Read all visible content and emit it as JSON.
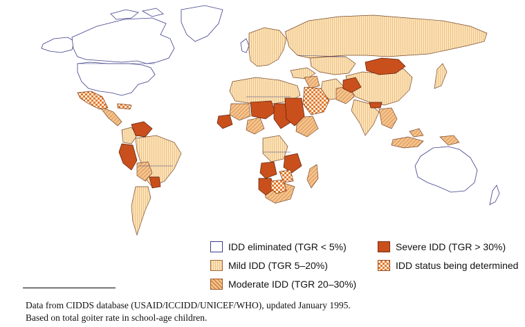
{
  "legend": {
    "items": [
      {
        "label": "IDD eliminated (TGR < 5%)",
        "pattern": "blank",
        "color": "#ffffff"
      },
      {
        "label": "Mild IDD (TGR 5–20%)",
        "pattern": "fine vertical lines",
        "color": "#fbe3b5"
      },
      {
        "label": "Moderate IDD (TGR 20–30%)",
        "pattern": "diagonal hatch",
        "color": "#f4c48c"
      },
      {
        "label": "Severe IDD (TGR > 30%)",
        "pattern": "solid",
        "color": "#c9501c"
      },
      {
        "label": "IDD status being determined",
        "pattern": "checkered",
        "color": "#e07834"
      }
    ]
  },
  "notes": {
    "line1": "Data from CIDDS database (USAID/ICCIDD/UNICEF/WHO), updated January 1995.",
    "line2": "Based on total goiter rate in school-age children."
  },
  "colors": {
    "ocean": "#ffffff",
    "outline": "#3c3c8a",
    "mild": "#fbe3b5",
    "moderate": "#f4c48c",
    "severe": "#c9501c",
    "determined": "#e07834"
  },
  "map": {
    "title": "",
    "regions": [
      {
        "name": "Canada",
        "status": "eliminated"
      },
      {
        "name": "United States",
        "status": "eliminated"
      },
      {
        "name": "Greenland",
        "status": "eliminated"
      },
      {
        "name": "Alaska",
        "status": "eliminated"
      },
      {
        "name": "Europe",
        "status": "mild"
      },
      {
        "name": "Russia",
        "status": "mild"
      },
      {
        "name": "Mongolia",
        "status": "severe"
      },
      {
        "name": "China",
        "status": "mild"
      },
      {
        "name": "India",
        "status": "mild"
      },
      {
        "name": "Mexico",
        "status": "determined"
      },
      {
        "name": "Central America",
        "status": "moderate"
      },
      {
        "name": "Venezuela",
        "status": "severe"
      },
      {
        "name": "Colombia",
        "status": "mild"
      },
      {
        "name": "Brazil",
        "status": "mild"
      },
      {
        "name": "Peru",
        "status": "severe"
      },
      {
        "name": "Bolivia",
        "status": "moderate"
      },
      {
        "name": "Paraguay",
        "status": "severe"
      },
      {
        "name": "Argentina",
        "status": "mild"
      },
      {
        "name": "Chile",
        "status": "mild"
      },
      {
        "name": "North Africa",
        "status": "mild"
      },
      {
        "name": "Mali",
        "status": "moderate"
      },
      {
        "name": "Niger",
        "status": "severe"
      },
      {
        "name": "Nigeria",
        "status": "moderate"
      },
      {
        "name": "Chad",
        "status": "severe"
      },
      {
        "name": "Sudan",
        "status": "severe"
      },
      {
        "name": "Ethiopia",
        "status": "moderate"
      },
      {
        "name": "Zaire",
        "status": "mild"
      },
      {
        "name": "Tanzania",
        "status": "severe"
      },
      {
        "name": "Angola",
        "status": "severe"
      },
      {
        "name": "Namibia",
        "status": "severe"
      },
      {
        "name": "Botswana",
        "status": "determined"
      },
      {
        "name": "South Africa",
        "status": "moderate"
      },
      {
        "name": "Madagascar",
        "status": "moderate"
      },
      {
        "name": "Saudi Arabia",
        "status": "determined"
      },
      {
        "name": "Iran",
        "status": "mild"
      },
      {
        "name": "Afghanistan",
        "status": "severe"
      },
      {
        "name": "Pakistan",
        "status": "moderate"
      },
      {
        "name": "Southeast Asia",
        "status": "moderate"
      },
      {
        "name": "Indonesia",
        "status": "moderate"
      },
      {
        "name": "Papua New Guinea",
        "status": "moderate"
      },
      {
        "name": "Australia",
        "status": "eliminated"
      }
    ]
  }
}
